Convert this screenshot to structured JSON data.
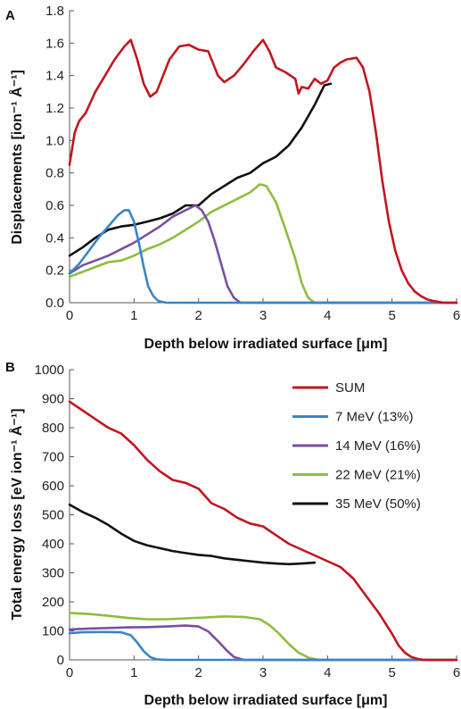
{
  "chart_data": [
    {
      "type": "line",
      "panel_label": "A",
      "xlabel": "Depth below irradiated surface [μm]",
      "ylabel": "Displacements [ion⁻¹ Å⁻¹]",
      "xlim": [
        0,
        6
      ],
      "ylim": [
        0,
        1.8
      ],
      "xticks": [
        "0",
        "1",
        "2",
        "3",
        "4",
        "5",
        "6"
      ],
      "yticks": [
        "0.0",
        "0.2",
        "0.4",
        "0.6",
        "0.8",
        "1.0",
        "1.2",
        "1.4",
        "1.6",
        "1.8"
      ],
      "grid": false,
      "series": [
        {
          "name": "SUM",
          "color": "#c0171d",
          "x": [
            0.0,
            0.08,
            0.15,
            0.25,
            0.4,
            0.55,
            0.7,
            0.85,
            0.95,
            1.05,
            1.15,
            1.25,
            1.35,
            1.45,
            1.55,
            1.7,
            1.85,
            2.0,
            2.15,
            2.3,
            2.4,
            2.55,
            2.7,
            2.85,
            3.0,
            3.1,
            3.2,
            3.35,
            3.5,
            3.55,
            3.6,
            3.7,
            3.8,
            3.9,
            4.0,
            4.1,
            4.2,
            4.3,
            4.45,
            4.55,
            4.65,
            4.75,
            4.85,
            4.95,
            5.05,
            5.15,
            5.25,
            5.35,
            5.45,
            5.55,
            5.65,
            5.8,
            6.0
          ],
          "values": [
            0.85,
            1.05,
            1.12,
            1.17,
            1.3,
            1.4,
            1.5,
            1.58,
            1.62,
            1.5,
            1.35,
            1.27,
            1.3,
            1.4,
            1.5,
            1.58,
            1.59,
            1.56,
            1.55,
            1.4,
            1.36,
            1.4,
            1.47,
            1.55,
            1.62,
            1.55,
            1.45,
            1.42,
            1.38,
            1.29,
            1.33,
            1.32,
            1.38,
            1.35,
            1.37,
            1.45,
            1.48,
            1.5,
            1.51,
            1.45,
            1.3,
            1.05,
            0.75,
            0.5,
            0.32,
            0.2,
            0.12,
            0.07,
            0.04,
            0.02,
            0.01,
            0.0,
            0.0
          ]
        },
        {
          "name": "7 MeV (13%)",
          "color": "#3a84c8",
          "x": [
            0.0,
            0.15,
            0.3,
            0.45,
            0.6,
            0.75,
            0.85,
            0.92,
            1.0,
            1.08,
            1.15,
            1.22,
            1.3,
            1.38,
            1.5,
            1.7,
            2.0,
            6.0
          ],
          "values": [
            0.18,
            0.24,
            0.32,
            0.4,
            0.47,
            0.54,
            0.57,
            0.57,
            0.5,
            0.36,
            0.22,
            0.1,
            0.04,
            0.01,
            0.0,
            0.0,
            0.0,
            0.0
          ]
        },
        {
          "name": "14 MeV (16%)",
          "color": "#7b4fa0",
          "x": [
            0.0,
            0.2,
            0.4,
            0.6,
            0.8,
            1.0,
            1.2,
            1.4,
            1.6,
            1.8,
            1.95,
            2.05,
            2.15,
            2.25,
            2.35,
            2.45,
            2.55,
            2.65,
            2.8,
            3.0,
            6.0
          ],
          "values": [
            0.18,
            0.23,
            0.26,
            0.29,
            0.33,
            0.37,
            0.42,
            0.47,
            0.53,
            0.57,
            0.6,
            0.57,
            0.5,
            0.38,
            0.24,
            0.1,
            0.03,
            0.0,
            0.0,
            0.0,
            0.0
          ]
        },
        {
          "name": "22 MeV (21%)",
          "color": "#8dbd3f",
          "x": [
            0.0,
            0.2,
            0.4,
            0.6,
            0.8,
            1.0,
            1.2,
            1.4,
            1.6,
            1.8,
            2.0,
            2.2,
            2.4,
            2.6,
            2.8,
            2.95,
            3.05,
            3.2,
            3.35,
            3.5,
            3.6,
            3.7,
            3.8,
            4.0,
            6.0
          ],
          "values": [
            0.16,
            0.19,
            0.22,
            0.25,
            0.26,
            0.29,
            0.33,
            0.36,
            0.4,
            0.45,
            0.5,
            0.56,
            0.6,
            0.64,
            0.68,
            0.73,
            0.72,
            0.62,
            0.45,
            0.27,
            0.12,
            0.03,
            0.0,
            0.0,
            0.0
          ]
        },
        {
          "name": "35 MeV (50%)",
          "color": "#111111",
          "x": [
            0.0,
            0.2,
            0.4,
            0.6,
            0.8,
            1.0,
            1.2,
            1.4,
            1.6,
            1.8,
            2.0,
            2.2,
            2.4,
            2.6,
            2.8,
            3.0,
            3.2,
            3.4,
            3.6,
            3.8,
            3.95,
            4.05
          ],
          "values": [
            0.29,
            0.34,
            0.4,
            0.45,
            0.47,
            0.48,
            0.5,
            0.52,
            0.55,
            0.6,
            0.6,
            0.67,
            0.72,
            0.77,
            0.8,
            0.86,
            0.9,
            0.97,
            1.08,
            1.22,
            1.34,
            1.35
          ]
        }
      ]
    },
    {
      "type": "line",
      "panel_label": "B",
      "xlabel": "Depth below irradiated surface [μm]",
      "ylabel": "Total energy loss [eV ion⁻¹ Å⁻¹]",
      "xlim": [
        0,
        6
      ],
      "ylim": [
        0,
        1000
      ],
      "xticks": [
        "0",
        "1",
        "2",
        "3",
        "4",
        "5",
        "6"
      ],
      "yticks": [
        "0",
        "100",
        "200",
        "300",
        "400",
        "500",
        "600",
        "700",
        "800",
        "900",
        "1000"
      ],
      "grid": false,
      "legend": "top-right",
      "series": [
        {
          "name": "SUM",
          "color": "#c0171d",
          "x": [
            0.0,
            0.2,
            0.4,
            0.6,
            0.8,
            1.0,
            1.2,
            1.4,
            1.6,
            1.8,
            2.0,
            2.2,
            2.4,
            2.6,
            2.8,
            3.0,
            3.2,
            3.4,
            3.6,
            3.8,
            4.0,
            4.2,
            4.4,
            4.6,
            4.8,
            5.0,
            5.1,
            5.2,
            5.3,
            5.4,
            5.5,
            5.6,
            5.8,
            6.0
          ],
          "values": [
            890,
            860,
            830,
            800,
            780,
            740,
            690,
            650,
            620,
            610,
            590,
            540,
            520,
            490,
            470,
            460,
            430,
            400,
            380,
            360,
            340,
            320,
            280,
            220,
            160,
            90,
            50,
            25,
            10,
            3,
            0,
            0,
            0,
            0
          ]
        },
        {
          "name": "7 MeV (13%)",
          "color": "#3a84c8",
          "x": [
            0.0,
            0.2,
            0.4,
            0.6,
            0.8,
            0.95,
            1.05,
            1.15,
            1.25,
            1.35,
            1.5,
            1.7,
            6.0
          ],
          "values": [
            92,
            95,
            96,
            96,
            95,
            85,
            60,
            30,
            10,
            2,
            0,
            0,
            0
          ]
        },
        {
          "name": "14 MeV (16%)",
          "color": "#7b4fa0",
          "x": [
            0.0,
            0.3,
            0.6,
            0.9,
            1.2,
            1.5,
            1.8,
            2.0,
            2.15,
            2.3,
            2.45,
            2.55,
            2.7,
            2.9,
            6.0
          ],
          "values": [
            105,
            108,
            110,
            112,
            113,
            115,
            118,
            115,
            98,
            65,
            30,
            10,
            0,
            0,
            0
          ]
        },
        {
          "name": "22 MeV (21%)",
          "color": "#8dbd3f",
          "x": [
            0.0,
            0.3,
            0.6,
            0.9,
            1.2,
            1.5,
            1.8,
            2.1,
            2.4,
            2.7,
            2.95,
            3.1,
            3.25,
            3.4,
            3.55,
            3.7,
            3.85,
            4.0,
            6.0
          ],
          "values": [
            162,
            158,
            152,
            145,
            140,
            140,
            143,
            146,
            150,
            148,
            140,
            120,
            90,
            55,
            25,
            8,
            0,
            0,
            0
          ]
        },
        {
          "name": "35 MeV (50%)",
          "color": "#111111",
          "x": [
            0.0,
            0.2,
            0.4,
            0.6,
            0.8,
            1.0,
            1.2,
            1.4,
            1.6,
            1.8,
            2.0,
            2.2,
            2.4,
            2.6,
            2.8,
            3.0,
            3.2,
            3.4,
            3.6,
            3.8
          ],
          "values": [
            535,
            510,
            490,
            465,
            435,
            410,
            395,
            385,
            375,
            368,
            362,
            358,
            350,
            345,
            340,
            335,
            332,
            330,
            332,
            335
          ]
        }
      ]
    }
  ]
}
